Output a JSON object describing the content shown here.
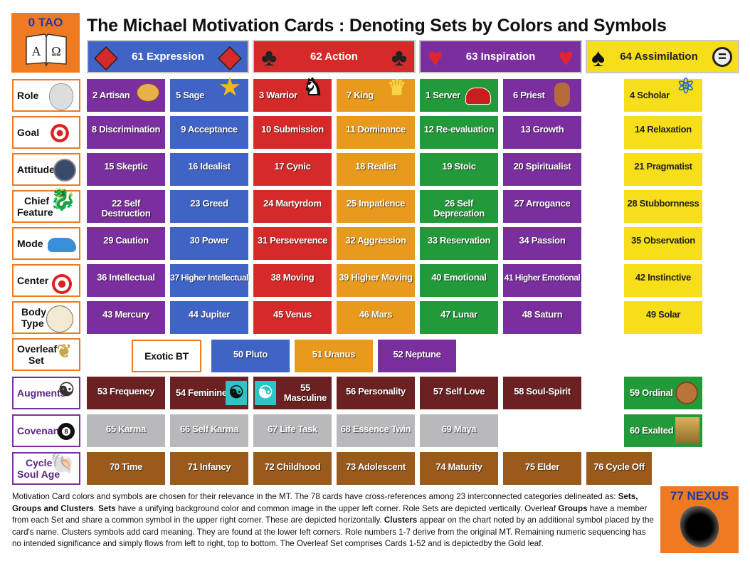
{
  "tao": {
    "label": "0 TAO",
    "book_text": "A Ω"
  },
  "title": "The Michael Motivation Cards : Denoting Sets by Colors and Symbols",
  "sets": [
    {
      "label": "61 Expression",
      "icon": "diamond-icon"
    },
    {
      "label": "62 Action",
      "icon": "club-icon"
    },
    {
      "label": "63 Inspiration",
      "icon": "heart-icon"
    },
    {
      "label": "64 Assimilation",
      "icon": "spade-icon"
    }
  ],
  "row_labels": {
    "role": "Role",
    "goal": "Goal",
    "attitude": "Attitude",
    "chief_feature_1": "Chief",
    "chief_feature_2": "Feature",
    "mode": "Mode",
    "center": "Center",
    "body_type_1": "Body",
    "body_type_2": "Type",
    "overleaf_1": "Overleaf",
    "overleaf_2": "Set",
    "augments": "Augments",
    "covenants": "Covenants",
    "cycle_1": "Cycle",
    "cycle_2": "Soul Age"
  },
  "cards": {
    "role": [
      "2 Artisan",
      "5 Sage",
      "3 Warrior",
      "7 King",
      "1 Server",
      "6 Priest",
      "4 Scholar"
    ],
    "goal": [
      "8 Discrimination",
      "9 Acceptance",
      "10 Submission",
      "11 Dominance",
      "12 Re-evaluation",
      "13 Growth",
      "14 Relaxation"
    ],
    "attitude": [
      "15 Skeptic",
      "16 Idealist",
      "17 Cynic",
      "18 Realist",
      "19 Stoic",
      "20 Spiritualist",
      "21 Pragmatist"
    ],
    "chief_feature": [
      "22 Self Destruction",
      "23 Greed",
      "24 Martyrdom",
      "25 Impatience",
      "26 Self Deprecation",
      "27 Arrogance",
      "28 Stubbornness"
    ],
    "mode": [
      "29 Caution",
      "30 Power",
      "31 Perseverence",
      "32 Aggression",
      "33 Reservation",
      "34 Passion",
      "35 Observation"
    ],
    "center": [
      "36 Intellectual",
      "37 Higher Intellectual",
      "38 Moving",
      "39 Higher Moving",
      "40 Emotional",
      "41 Higher Emotional",
      "42 Instinctive"
    ],
    "body_type": [
      "43 Mercury",
      "44 Jupiter",
      "45 Venus",
      "46 Mars",
      "47 Lunar",
      "48 Saturn",
      "49 Solar"
    ],
    "overleaf": [
      "Exotic BT",
      "50 Pluto",
      "51 Uranus",
      "52 Neptune"
    ],
    "augments": [
      "53 Frequency",
      "54 Feminine",
      "55 Masculine",
      "56 Personality",
      "57 Self Love",
      "58 Soul-Spirit",
      "59 Ordinal"
    ],
    "covenants": [
      "65 Karma",
      "66 Self Karma",
      "67 Life Task",
      "68 Essence Twin",
      "69 Maya",
      "60 Exalted"
    ],
    "cycle": [
      "70 Time",
      "71 Infancy",
      "72 Childhood",
      "73 Adolescent",
      "74 Maturity",
      "75 Elder",
      "76 Cycle Off"
    ]
  },
  "nexus": {
    "label": "77 NEXUS"
  },
  "description": {
    "p1": "Motivation Card colors and symbols are chosen for their relevance in the MT. The 78 cards have cross-references among 23 interconnected categories delineated as:",
    "sets_groups_clusters": "Sets, Groups and Clusters",
    "p2": ". ",
    "sets_word": "Sets",
    "p3": " have a unifying background color and common image in the upper left corner. Role Sets are depicted vertically. Overleaf ",
    "groups_word": "Groups",
    "p4": " have a member from each Set and share a common symbol in the upper right corner. These are depicted horizontally. ",
    "clusters_word": "Clusters",
    "p5": " appear on the chart noted by an additional symbol placed by the card's name. Clusters symbols add card meaning. They are found at the lower left corners. Role numbers 1-7 derive from the original MT. Remaining numeric sequencing has no intended significance and simply flows from left to right, top to bottom. The Overleaf Set comprises Cards 1-52 and is depictedby the Gold leaf."
  },
  "colors": {
    "orange": "#f07a21",
    "purple": "#7b2f9e",
    "blue": "#3f64c5",
    "red": "#d62a2a",
    "gold": "#e79a1c",
    "green": "#239a3a",
    "yellow": "#f7de1a",
    "maroon": "#6b2121",
    "gray": "#b9b9bc",
    "brown": "#9a5a1c"
  }
}
